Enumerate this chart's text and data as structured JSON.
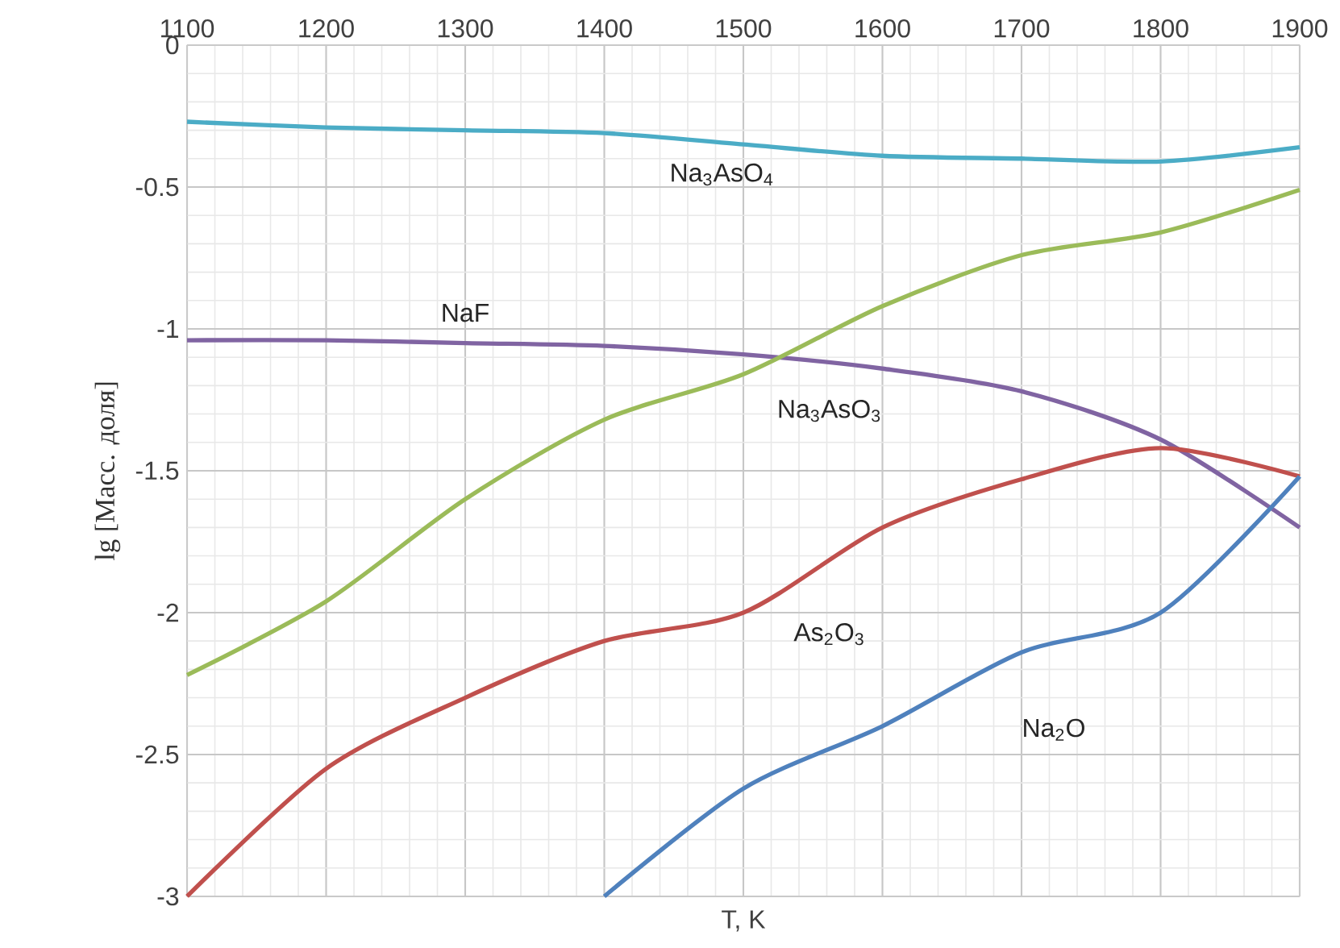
{
  "chart_data": {
    "type": "line",
    "xlabel": "T, K",
    "ylabel": "lg [Масс. доля]",
    "xlim": [
      1100,
      1900
    ],
    "xticks": [
      1100,
      1200,
      1300,
      1400,
      1500,
      1600,
      1700,
      1800,
      1900
    ],
    "ylim": [
      -3,
      0
    ],
    "yticks": [
      -3,
      -2.5,
      -2,
      -1.5,
      -1,
      -0.5,
      0
    ],
    "grid": true,
    "legend": false,
    "series": [
      {
        "name": "Na$_{3}$AsO$_{4}$",
        "color": "#4bacc6",
        "x": [
          1100,
          1200,
          1300,
          1400,
          1500,
          1600,
          1700,
          1800,
          1900
        ],
        "values": [
          -0.27,
          -0.29,
          -0.3,
          -0.31,
          -0.35,
          -0.39,
          -0.4,
          -0.41,
          -0.36
        ]
      },
      {
        "name": "NaF",
        "color": "#8064a2",
        "x": [
          1100,
          1200,
          1300,
          1400,
          1500,
          1600,
          1700,
          1800,
          1900
        ],
        "values": [
          -1.04,
          -1.04,
          -1.05,
          -1.06,
          -1.09,
          -1.14,
          -1.22,
          -1.39,
          -1.7
        ]
      },
      {
        "name": "Na$_{3}$AsO$_{3}$",
        "color": "#9bbb59",
        "x": [
          1100,
          1200,
          1300,
          1400,
          1500,
          1600,
          1700,
          1800,
          1900
        ],
        "values": [
          -2.22,
          -1.96,
          -1.6,
          -1.32,
          -1.16,
          -0.92,
          -0.74,
          -0.66,
          -0.51
        ]
      },
      {
        "name": "As$_{2}$O$_{3}$",
        "color": "#c0504d",
        "x": [
          1100,
          1200,
          1300,
          1400,
          1500,
          1600,
          1700,
          1800,
          1900
        ],
        "values": [
          -3.0,
          -2.55,
          -2.3,
          -2.1,
          -2.0,
          -1.7,
          -1.53,
          -1.42,
          -1.52
        ]
      },
      {
        "name": "Na$_{2}$O",
        "color": "#4f81bd",
        "x": [
          1400,
          1500,
          1600,
          1700,
          1800,
          1900
        ],
        "values": [
          -3.0,
          -2.62,
          -2.4,
          -2.14,
          -2.0,
          -1.52
        ]
      }
    ]
  }
}
